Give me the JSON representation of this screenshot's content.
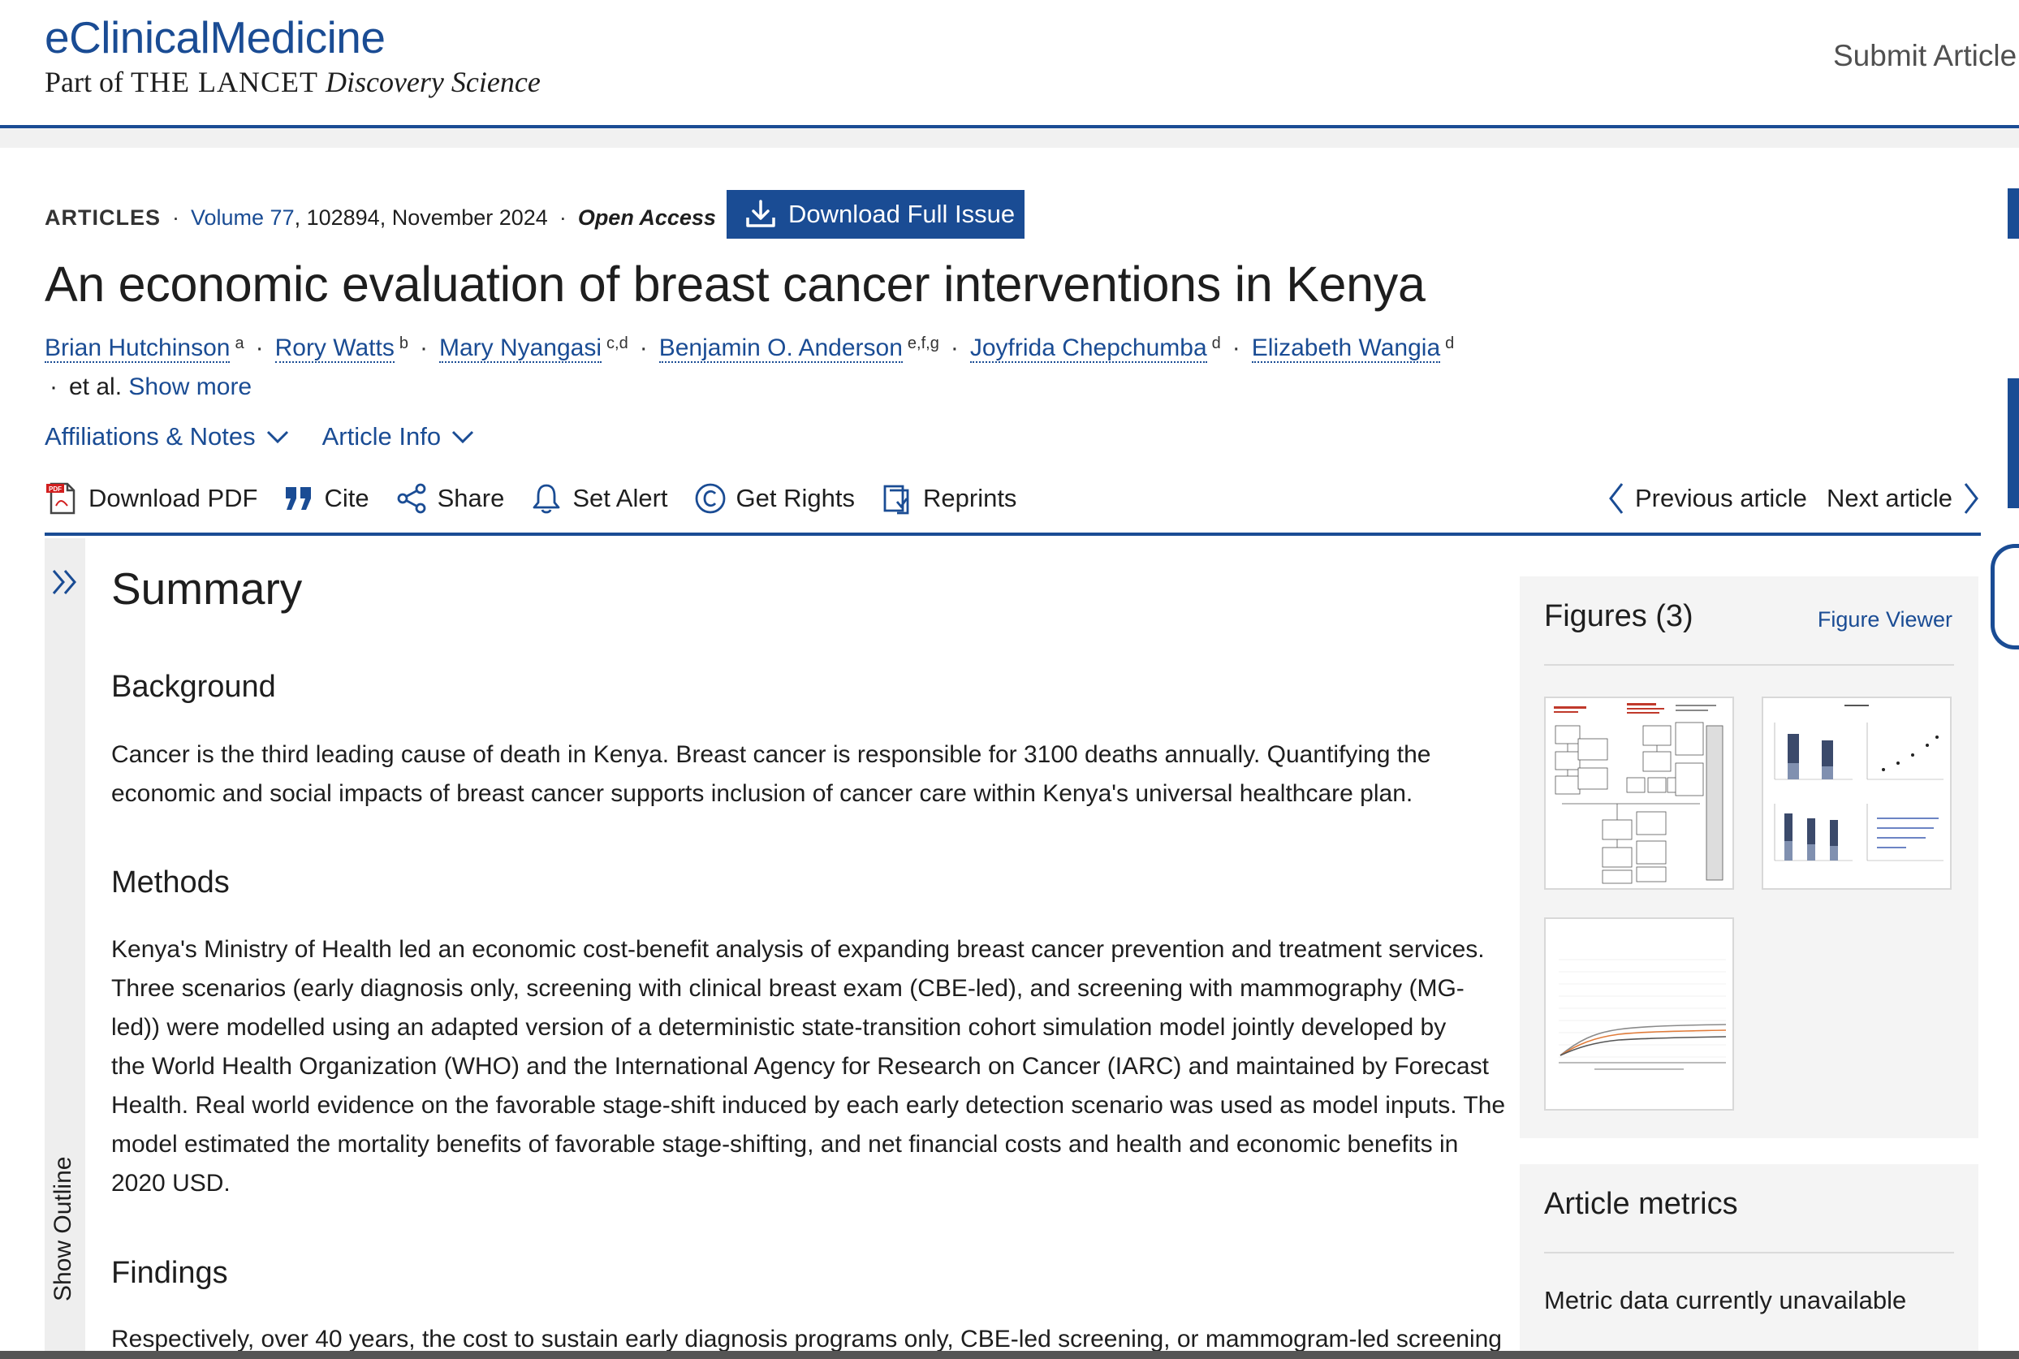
{
  "header": {
    "brand_title": "eClinicalMedicine",
    "brand_sub_prefix": "Part of",
    "brand_sub_lancet": "THE LANCET",
    "brand_sub_suffix": "Discovery Science",
    "submit_label": "Submit Article"
  },
  "article": {
    "type": "ARTICLES",
    "volume": "Volume 77",
    "issue_info": ", 102894, November 2024",
    "access": "Open Access",
    "download_issue_label": "Download Full Issue",
    "title": "An economic evaluation of breast cancer interventions in Kenya",
    "authors": [
      {
        "name": "Brian Hutchinson",
        "sup": "a"
      },
      {
        "name": "Rory Watts",
        "sup": "b"
      },
      {
        "name": "Mary Nyangasi",
        "sup": "c,d"
      },
      {
        "name": "Benjamin O. Anderson",
        "sup": "e,f,g"
      },
      {
        "name": "Joyfrida Chepchumba",
        "sup": "d"
      },
      {
        "name": "Elizabeth Wangia",
        "sup": "d"
      }
    ],
    "et_al": "et al.",
    "show_more": "Show more"
  },
  "tabs": {
    "affiliations": "Affiliations & Notes",
    "article_info": "Article Info"
  },
  "toolbar": {
    "download_pdf": "Download PDF",
    "cite": "Cite",
    "share": "Share",
    "set_alert": "Set Alert",
    "get_rights": "Get Rights",
    "reprints": "Reprints",
    "previous": "Previous article",
    "next": "Next article"
  },
  "outline": {
    "label": "Show Outline"
  },
  "summary": {
    "heading": "Summary",
    "background_heading": "Background",
    "background_lines": [
      "Cancer is the third leading cause of death in Kenya. Breast cancer is responsible for 3100 deaths annually. Quantifying the",
      "economic and social impacts of breast cancer supports inclusion of cancer care within Kenya's universal healthcare plan."
    ],
    "methods_heading": "Methods",
    "methods_lines": [
      "Kenya's Ministry of Health led an economic cost-benefit analysis of expanding breast cancer prevention and treatment services.",
      "Three scenarios (early diagnosis only, screening with clinical breast exam (CBE-led), and screening with mammography (MG-",
      "led)) were modelled using an adapted version of a deterministic state-transition cohort simulation model jointly developed by",
      "the World Health Organization (WHO) and the International Agency for Research on Cancer (IARC) and maintained by Forecast",
      "Health. Real world evidence on the favorable stage-shift induced by each early detection scenario was used as model inputs. The",
      "model estimated the mortality benefits of favorable stage-shifting, and net financial costs and health and economic benefits in",
      "2020 USD."
    ],
    "findings_heading": "Findings",
    "findings_lines": [
      "Respectively, over 40 years, the cost to sustain early diagnosis programs only, CBE-led screening, or mammogram-led screening"
    ]
  },
  "figures_panel": {
    "heading": "Figures (3)",
    "viewer_link": "Figure Viewer"
  },
  "metrics_panel": {
    "heading": "Article metrics",
    "message": "Metric data currently unavailable"
  }
}
